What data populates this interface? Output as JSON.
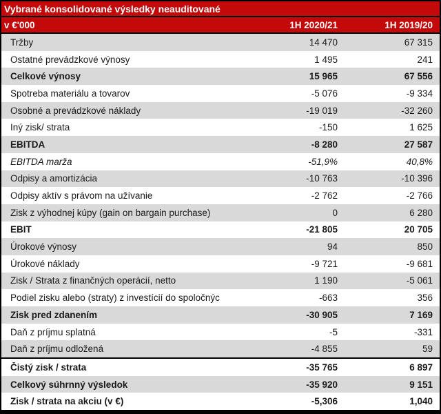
{
  "title": "Vybrané konsolidované výsledky neauditované",
  "header": {
    "unit_label": "v €'000",
    "col_2020_21": "1H 2020/21",
    "col_2019_20": "1H 2019/20"
  },
  "rows": [
    {
      "label": "Tržby",
      "v2020_21": "14 470",
      "v2019_20": "67 315",
      "emphasis": "normal",
      "separator_above": false
    },
    {
      "label": "Ostatné prevádzkové výnosy",
      "v2020_21": "1 495",
      "v2019_20": "241",
      "emphasis": "normal",
      "separator_above": false
    },
    {
      "label": "Celkové výnosy",
      "v2020_21": "15 965",
      "v2019_20": "67 556",
      "emphasis": "bold",
      "separator_above": false
    },
    {
      "label": "Spotreba materiálu a tovarov",
      "v2020_21": "-5 076",
      "v2019_20": "-9 334",
      "emphasis": "normal",
      "separator_above": false
    },
    {
      "label": "Osobné a prevádzkové náklady",
      "v2020_21": "-19 019",
      "v2019_20": "-32 260",
      "emphasis": "normal",
      "separator_above": false
    },
    {
      "label": "Iný zisk/ strata",
      "v2020_21": "-150",
      "v2019_20": "1 625",
      "emphasis": "normal",
      "separator_above": false
    },
    {
      "label": "EBITDA",
      "v2020_21": "-8 280",
      "v2019_20": "27 587",
      "emphasis": "bold",
      "separator_above": false
    },
    {
      "label": "EBITDA marža",
      "v2020_21": "-51,9%",
      "v2019_20": "40,8%",
      "emphasis": "italic",
      "separator_above": false
    },
    {
      "label": "Odpisy a amortizácia",
      "v2020_21": "-10 763",
      "v2019_20": "-10 396",
      "emphasis": "normal",
      "separator_above": false
    },
    {
      "label": "Odpisy aktív s právom na užívanie",
      "v2020_21": "-2 762",
      "v2019_20": "-2 766",
      "emphasis": "normal",
      "separator_above": false
    },
    {
      "label": "Zisk z výhodnej kúpy (gain on bargain purchase)",
      "v2020_21": "0",
      "v2019_20": "6 280",
      "emphasis": "normal",
      "separator_above": false
    },
    {
      "label": "EBIT",
      "v2020_21": "-21 805",
      "v2019_20": "20 705",
      "emphasis": "bold",
      "separator_above": false
    },
    {
      "label": "Úrokové výnosy",
      "v2020_21": "94",
      "v2019_20": "850",
      "emphasis": "normal",
      "separator_above": false
    },
    {
      "label": "Úrokové náklady",
      "v2020_21": "-9 721",
      "v2019_20": "-9 681",
      "emphasis": "normal",
      "separator_above": false
    },
    {
      "label": "Zisk / Strata z finančných operácií, netto",
      "v2020_21": "1 190",
      "v2019_20": "-5 061",
      "emphasis": "normal",
      "separator_above": false
    },
    {
      "label": "Podiel zisku alebo (straty) z investícií do spoločnýc",
      "v2020_21": "-663",
      "v2019_20": "356",
      "emphasis": "normal",
      "separator_above": false
    },
    {
      "label": "Zisk pred zdanením",
      "v2020_21": "-30 905",
      "v2019_20": "7 169",
      "emphasis": "bold",
      "separator_above": false
    },
    {
      "label": "Daň z príjmu splatná",
      "v2020_21": "-5",
      "v2019_20": "-331",
      "emphasis": "normal",
      "separator_above": false
    },
    {
      "label": "Daň z príjmu odložená",
      "v2020_21": "-4 855",
      "v2019_20": "59",
      "emphasis": "normal",
      "separator_above": false
    },
    {
      "label": "Čistý zisk / strata",
      "v2020_21": "-35 765",
      "v2019_20": "6 897",
      "emphasis": "bold",
      "separator_above": true
    },
    {
      "label": "Celkový súhrnný výsledok",
      "v2020_21": "-35 920",
      "v2019_20": "9 151",
      "emphasis": "bold",
      "separator_above": false
    },
    {
      "label": "Zisk / strata na akciu (v €)",
      "v2020_21": "-5,306",
      "v2019_20": "1,040",
      "emphasis": "bold",
      "separator_above": false
    }
  ],
  "colors": {
    "accent_red": "#C30909",
    "row_alt_gray": "#D9D9D9",
    "border_black": "#000000",
    "header_text": "#FFFFFF",
    "body_text": "#1A1A1A"
  }
}
